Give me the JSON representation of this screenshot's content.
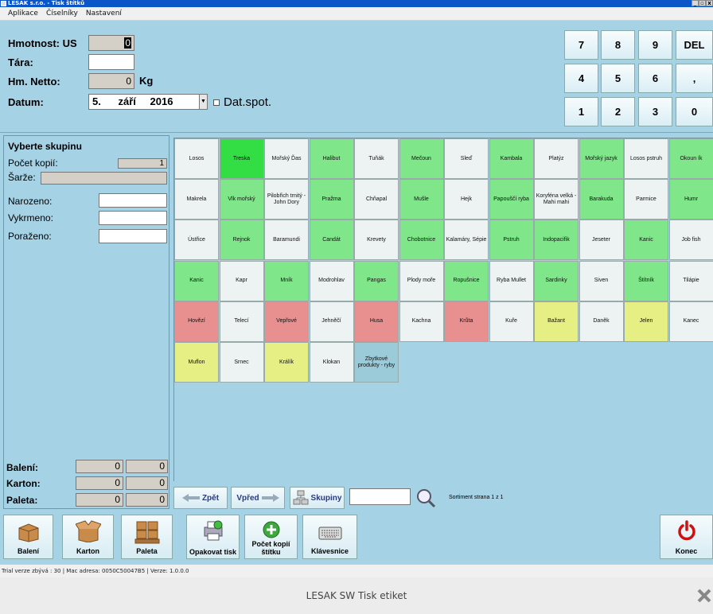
{
  "window": {
    "title": "LESAK s.r.o. - Tisk štítků",
    "min": "_",
    "max": "▫",
    "close": "x"
  },
  "menu": [
    "Aplikace",
    "Číselníky",
    "Nastavení"
  ],
  "form": {
    "hmotnost_label": "Hmotnost: US",
    "hmotnost_value": "0",
    "tara_label": "Tára:",
    "tara_value": "",
    "netto_label": "Hm. Netto:",
    "netto_value": "0",
    "netto_unit": "Kg",
    "datum_label": "Datum:",
    "date_day": "5.",
    "date_month": "září",
    "date_year": "2016",
    "datspot_label": "Dat.spot."
  },
  "numpad": [
    "7",
    "8",
    "9",
    "DEL",
    "4",
    "5",
    "6",
    ",",
    "1",
    "2",
    "3",
    "0"
  ],
  "left": {
    "group_title": "Vyberte skupinu",
    "copies_label": "Počet kopií:",
    "copies_value": "1",
    "batch_label": "Šarže:",
    "born_label": "Narozeno:",
    "raised_label": "Vykrmeno:",
    "slaughter_label": "Poraženo:",
    "baleni_label": "Balení:",
    "baleni_a": "0",
    "baleni_b": "0",
    "karton_label": "Karton:",
    "karton_a": "0",
    "karton_b": "0",
    "paleta_label": "Paleta:",
    "paleta_a": "0",
    "paleta_b": "0"
  },
  "colors": {
    "white": "#edf3f3",
    "green": "#80e68a",
    "bright_green": "#33dd44",
    "red": "#e88f8f",
    "yellow": "#e6ef84",
    "blue": "#9bcad8"
  },
  "tiles": [
    {
      "label": "Losos",
      "color": "white"
    },
    {
      "label": "Treska",
      "color": "bright_green"
    },
    {
      "label": "Mořský Ďas",
      "color": "white"
    },
    {
      "label": "Halibut",
      "color": "green"
    },
    {
      "label": "Tuňák",
      "color": "white"
    },
    {
      "label": "Mečoun",
      "color": "green"
    },
    {
      "label": "Sleď",
      "color": "white"
    },
    {
      "label": "Kambala",
      "color": "green"
    },
    {
      "label": "Platýz",
      "color": "white"
    },
    {
      "label": "Mořský jazyk",
      "color": "green"
    },
    {
      "label": "Losos pstruh",
      "color": "white"
    },
    {
      "label": "Okoun ík",
      "color": "green"
    },
    {
      "label": "Makrela",
      "color": "white"
    },
    {
      "label": "Vlk mořský",
      "color": "green"
    },
    {
      "label": "Pilobřich trnitý - John Dory",
      "color": "white"
    },
    {
      "label": "Pražma",
      "color": "green"
    },
    {
      "label": "Chňapal",
      "color": "white"
    },
    {
      "label": "Mušle",
      "color": "green"
    },
    {
      "label": "Hejk",
      "color": "white"
    },
    {
      "label": "Papouščí ryba",
      "color": "green"
    },
    {
      "label": "Koryféna velká - Mahi mahi",
      "color": "white"
    },
    {
      "label": "Barakuda",
      "color": "green"
    },
    {
      "label": "Parmice",
      "color": "white"
    },
    {
      "label": "Humr",
      "color": "green"
    },
    {
      "label": "Ústřice",
      "color": "white"
    },
    {
      "label": "Rejnok",
      "color": "green"
    },
    {
      "label": "Baramundi",
      "color": "white"
    },
    {
      "label": "Candát",
      "color": "green"
    },
    {
      "label": "Krevety",
      "color": "white"
    },
    {
      "label": "Chobotnice",
      "color": "green"
    },
    {
      "label": "Kalamáry, Sépie",
      "color": "white"
    },
    {
      "label": "Pstruh",
      "color": "green"
    },
    {
      "label": "Indopacifik",
      "color": "green"
    },
    {
      "label": "Jeseter",
      "color": "white"
    },
    {
      "label": "Kanic",
      "color": "green"
    },
    {
      "label": "Job fish",
      "color": "white"
    },
    {
      "label": "Kanic",
      "color": "green"
    },
    {
      "label": "Kapr",
      "color": "white"
    },
    {
      "label": "Mník",
      "color": "green"
    },
    {
      "label": "Modrohlav",
      "color": "white"
    },
    {
      "label": "Pangas",
      "color": "green"
    },
    {
      "label": "Plody moře",
      "color": "white"
    },
    {
      "label": "Ropušnice",
      "color": "green"
    },
    {
      "label": "Ryba Mullet",
      "color": "white"
    },
    {
      "label": "Sardinky",
      "color": "green"
    },
    {
      "label": "Siven",
      "color": "white"
    },
    {
      "label": "Štítník",
      "color": "green"
    },
    {
      "label": "Tilápie",
      "color": "white"
    },
    {
      "label": "Hovězí",
      "color": "red"
    },
    {
      "label": "Telecí",
      "color": "white"
    },
    {
      "label": "Vepřové",
      "color": "red"
    },
    {
      "label": "Jehněčí",
      "color": "white"
    },
    {
      "label": "Husa",
      "color": "red"
    },
    {
      "label": "Kachna",
      "color": "white"
    },
    {
      "label": "Krůta",
      "color": "red"
    },
    {
      "label": "Kuře",
      "color": "white"
    },
    {
      "label": "Bažant",
      "color": "yellow"
    },
    {
      "label": "Daněk",
      "color": "white"
    },
    {
      "label": "Jelen",
      "color": "yellow"
    },
    {
      "label": "Kanec",
      "color": "white"
    },
    {
      "label": "Muflon",
      "color": "yellow"
    },
    {
      "label": "Srnec",
      "color": "white"
    },
    {
      "label": "Králík",
      "color": "yellow"
    },
    {
      "label": "Klokan",
      "color": "white"
    },
    {
      "label": "Zbytkové produkty - ryby",
      "color": "blue"
    }
  ],
  "nav": {
    "back": "Zpět",
    "forward": "Vpřed",
    "groups": "Skupiny",
    "search_value": "",
    "page_info": "Sortiment strana 1 z 1"
  },
  "toolbar": {
    "baleni": "Balení",
    "karton": "Karton",
    "paleta": "Paleta",
    "repeat": "Opakovat tisk",
    "copies": "Počet kopií štítku",
    "keyboard": "Klávesnice",
    "exit": "Konec"
  },
  "status": "Trial verze zbývá : 30  |  Mac adresa: 0050C50047B5  |  Verze: 1.0.0.0",
  "footer": {
    "title": "LESAK SW Tisk etiket"
  }
}
